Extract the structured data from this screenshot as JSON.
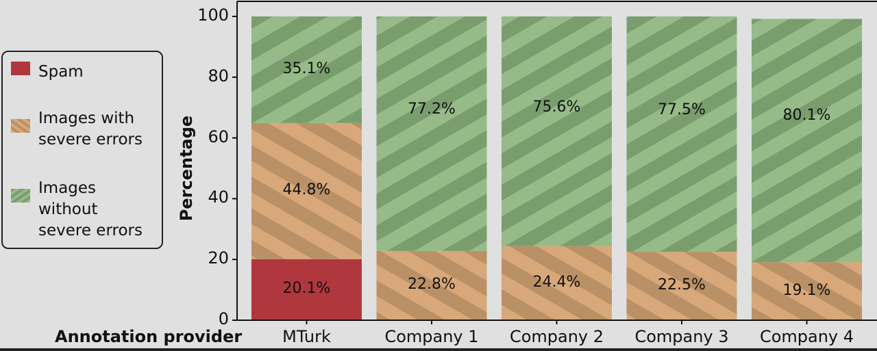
{
  "chart_data": {
    "type": "bar",
    "stacked": true,
    "title": "",
    "xlabel": "Annotation provider",
    "ylabel": "Percentage",
    "ylim": [
      0,
      100
    ],
    "yticks": [
      0,
      20,
      40,
      60,
      80,
      100
    ],
    "grid": false,
    "legend_position": "left, outside plot",
    "categories": [
      "MTurk",
      "Company 1",
      "Company 2",
      "Company 3",
      "Company 4"
    ],
    "series": [
      {
        "name": "Spam",
        "color": "#b0373d",
        "pattern": "solid",
        "values": [
          20.1,
          0,
          0,
          0,
          0
        ],
        "labels": [
          "20.1%",
          "",
          "",
          "",
          ""
        ]
      },
      {
        "name": "Images with severe errors",
        "color": "#d8a87a",
        "stripe_color": "#ba9166",
        "pattern": "diagonal-stripes-down",
        "values": [
          44.8,
          22.8,
          24.4,
          22.5,
          19.1
        ],
        "labels": [
          "44.8%",
          "22.8%",
          "24.4%",
          "22.5%",
          "19.1%"
        ]
      },
      {
        "name": "Images without severe errors",
        "color": "#96bb88",
        "stripe_color": "#7a9d6e",
        "pattern": "diagonal-stripes-up",
        "values": [
          35.1,
          77.2,
          75.6,
          77.5,
          80.1
        ],
        "labels": [
          "35.1%",
          "77.2%",
          "75.6%",
          "77.5%",
          "80.1%"
        ]
      }
    ]
  },
  "legend": {
    "items": [
      {
        "label": "Spam"
      },
      {
        "label": "Images with\nsevere errors"
      },
      {
        "label": "Images\nwithout\nsevere errors"
      }
    ]
  },
  "axes": {
    "x_title": "Annotation provider",
    "y_title": "Percentage"
  },
  "colors": {
    "background": "#e0e0e0",
    "axis": "#111111",
    "spam": "#b0373d",
    "severe": "#d8a87a",
    "severe_stripe": "#ba9166",
    "ok": "#96bb88",
    "ok_stripe": "#7a9d6e"
  }
}
